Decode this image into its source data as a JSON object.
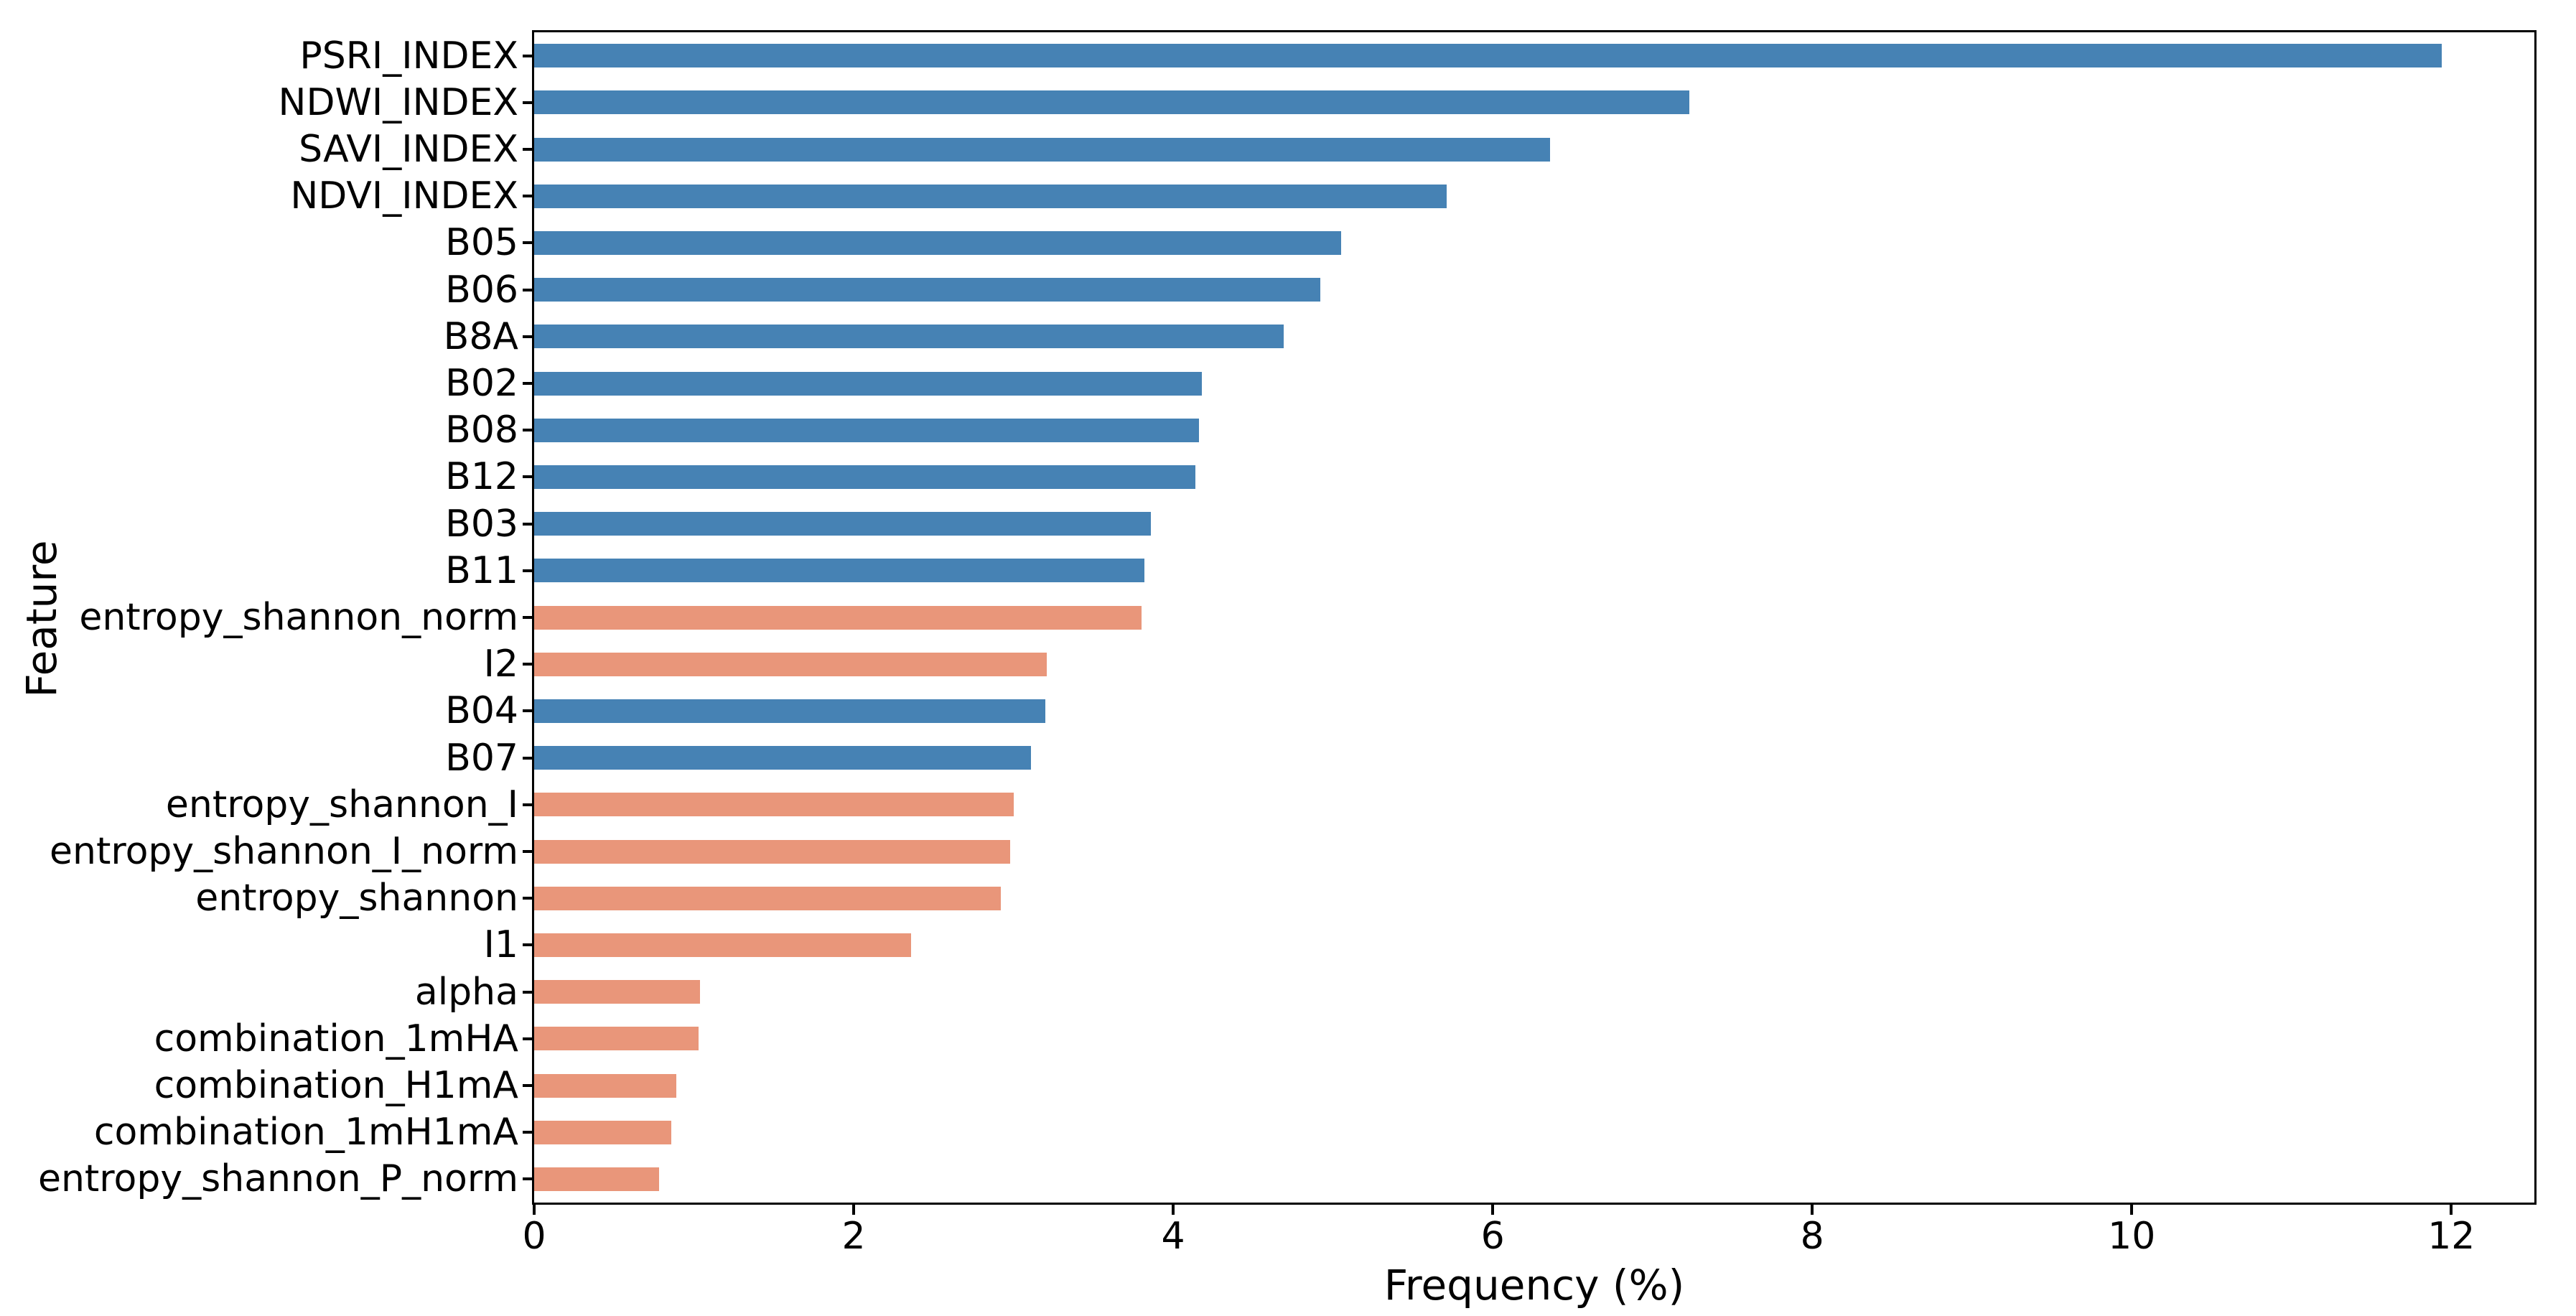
{
  "figure": {
    "background": "#ffffff",
    "text_color": "#000000"
  },
  "chart_data": {
    "type": "bar",
    "orientation": "horizontal",
    "title": "",
    "xlabel": "Frequency (%)",
    "ylabel": "Feature",
    "xlim": [
      0,
      12.52
    ],
    "xticks": [
      0,
      2,
      4,
      6,
      8,
      10,
      12
    ],
    "grid": false,
    "legend": false,
    "palette": {
      "blue": "#4682B4",
      "salmon": "#E9967A"
    },
    "bars": [
      {
        "label": "PSRI_INDEX",
        "value": 11.94,
        "color": "blue"
      },
      {
        "label": "NDWI_INDEX",
        "value": 7.23,
        "color": "blue"
      },
      {
        "label": "SAVI_INDEX",
        "value": 6.36,
        "color": "blue"
      },
      {
        "label": "NDVI_INDEX",
        "value": 5.71,
        "color": "blue"
      },
      {
        "label": "B05",
        "value": 5.05,
        "color": "blue"
      },
      {
        "label": "B06",
        "value": 4.92,
        "color": "blue"
      },
      {
        "label": "B8A",
        "value": 4.69,
        "color": "blue"
      },
      {
        "label": "B02",
        "value": 4.18,
        "color": "blue"
      },
      {
        "label": "B08",
        "value": 4.16,
        "color": "blue"
      },
      {
        "label": "B12",
        "value": 4.14,
        "color": "blue"
      },
      {
        "label": "B03",
        "value": 3.86,
        "color": "blue"
      },
      {
        "label": "B11",
        "value": 3.82,
        "color": "blue"
      },
      {
        "label": "entropy_shannon_norm",
        "value": 3.8,
        "color": "salmon"
      },
      {
        "label": "I2",
        "value": 3.21,
        "color": "salmon"
      },
      {
        "label": "B04",
        "value": 3.2,
        "color": "blue"
      },
      {
        "label": "B07",
        "value": 3.11,
        "color": "blue"
      },
      {
        "label": "entropy_shannon_I",
        "value": 3.0,
        "color": "salmon"
      },
      {
        "label": "entropy_shannon_I_norm",
        "value": 2.98,
        "color": "salmon"
      },
      {
        "label": "entropy_shannon",
        "value": 2.92,
        "color": "salmon"
      },
      {
        "label": "I1",
        "value": 2.36,
        "color": "salmon"
      },
      {
        "label": "alpha",
        "value": 1.04,
        "color": "salmon"
      },
      {
        "label": "combination_1mHA",
        "value": 1.03,
        "color": "salmon"
      },
      {
        "label": "combination_H1mA",
        "value": 0.89,
        "color": "salmon"
      },
      {
        "label": "combination_1mH1mA",
        "value": 0.86,
        "color": "salmon"
      },
      {
        "label": "entropy_shannon_P_norm",
        "value": 0.78,
        "color": "salmon"
      }
    ]
  }
}
